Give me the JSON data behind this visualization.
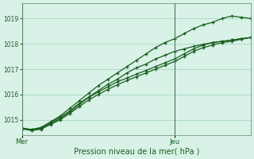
{
  "xlabel": "Pression niveau de la mer( hPa )",
  "background_color": "#d8f2e8",
  "grid_color": "#a8d8c0",
  "line_color": "#1a5e20",
  "ylim": [
    1014.4,
    1019.6
  ],
  "y_ticks": [
    1015,
    1016,
    1017,
    1018,
    1019
  ],
  "xlim": [
    0,
    72
  ],
  "mer_x": 0,
  "jeu_x": 48,
  "series": [
    [
      0,
      1014.65,
      3,
      1014.62,
      6,
      1014.68,
      9,
      1014.9,
      12,
      1015.1,
      15,
      1015.35,
      18,
      1015.65,
      21,
      1015.9,
      24,
      1016.15,
      27,
      1016.4,
      30,
      1016.6,
      33,
      1016.85,
      36,
      1017.05,
      39,
      1017.2,
      42,
      1017.4,
      45,
      1017.55,
      48,
      1017.7,
      51,
      1017.8,
      54,
      1017.9,
      57,
      1017.98,
      60,
      1018.05,
      63,
      1018.1,
      66,
      1018.15,
      69,
      1018.2,
      72,
      1018.25
    ],
    [
      0,
      1014.65,
      3,
      1014.6,
      6,
      1014.65,
      9,
      1014.85,
      12,
      1015.05,
      15,
      1015.3,
      18,
      1015.6,
      21,
      1015.88,
      24,
      1016.1,
      27,
      1016.3,
      30,
      1016.5,
      33,
      1016.65,
      36,
      1016.8,
      39,
      1016.95,
      42,
      1017.1,
      45,
      1017.25,
      48,
      1017.4,
      51,
      1017.6,
      54,
      1017.8,
      57,
      1017.95,
      60,
      1018.05,
      63,
      1018.1,
      66,
      1018.15,
      69,
      1018.2,
      72,
      1018.25
    ],
    [
      0,
      1014.68,
      3,
      1014.62,
      6,
      1014.7,
      9,
      1014.92,
      12,
      1015.15,
      15,
      1015.45,
      18,
      1015.75,
      21,
      1016.05,
      24,
      1016.35,
      27,
      1016.6,
      30,
      1016.85,
      33,
      1017.1,
      36,
      1017.35,
      39,
      1017.6,
      42,
      1017.85,
      45,
      1018.05,
      48,
      1018.2,
      51,
      1018.4,
      54,
      1018.6,
      57,
      1018.75,
      60,
      1018.85,
      63,
      1019.0,
      66,
      1019.1,
      69,
      1019.05,
      72,
      1019.0
    ],
    [
      0,
      1014.65,
      3,
      1014.58,
      6,
      1014.63,
      9,
      1014.82,
      12,
      1015.0,
      15,
      1015.25,
      18,
      1015.52,
      21,
      1015.78,
      24,
      1016.0,
      27,
      1016.2,
      30,
      1016.38,
      33,
      1016.55,
      36,
      1016.7,
      39,
      1016.85,
      42,
      1017.0,
      45,
      1017.15,
      48,
      1017.3,
      51,
      1017.5,
      54,
      1017.7,
      57,
      1017.85,
      60,
      1017.95,
      63,
      1018.05,
      66,
      1018.1,
      69,
      1018.18,
      72,
      1018.25
    ]
  ]
}
